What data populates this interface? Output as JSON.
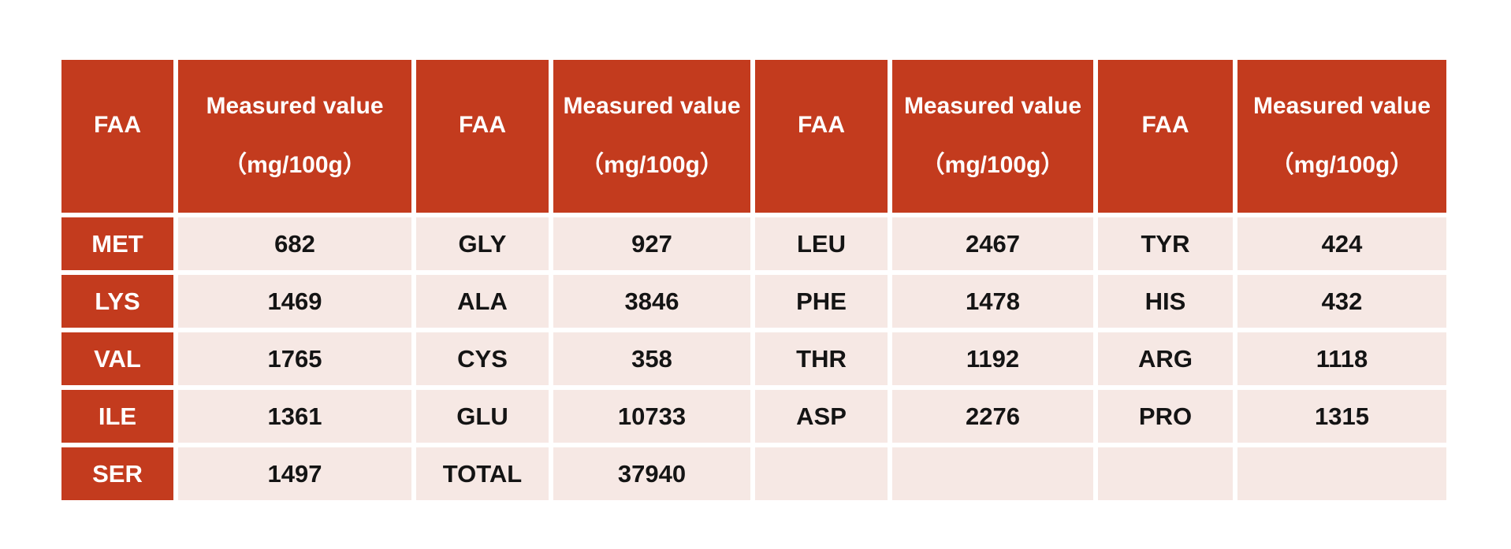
{
  "header": {
    "faa_label": "FAA",
    "value_label": "Measured value",
    "unit_label": "（mg/100g）"
  },
  "colors": {
    "header_bg": "#C33B1E",
    "body_bg": "#F6E8E4",
    "header_text": "#FFFFFF",
    "body_text": "#141414"
  },
  "chart_data": {
    "type": "table",
    "title": "",
    "unit": "mg/100g",
    "columns": [
      "FAA",
      "Measured value（mg/100g）",
      "FAA",
      "Measured value（mg/100g）",
      "FAA",
      "Measured value（mg/100g）",
      "FAA",
      "Measured value（mg/100g）"
    ],
    "rows": [
      [
        "MET",
        "682",
        "GLY",
        "927",
        "LEU",
        "2467",
        "TYR",
        "424"
      ],
      [
        "LYS",
        "1469",
        "ALA",
        "3846",
        "PHE",
        "1478",
        "HIS",
        "432"
      ],
      [
        "VAL",
        "1765",
        "CYS",
        "358",
        "THR",
        "1192",
        "ARG",
        "1118"
      ],
      [
        "ILE",
        "1361",
        "GLU",
        "10733",
        "ASP",
        "2276",
        "PRO",
        "1315"
      ],
      [
        "SER",
        "1497",
        "TOTAL",
        "37940",
        "",
        "",
        "",
        ""
      ]
    ],
    "measurements": [
      {
        "faa": "MET",
        "value": 682
      },
      {
        "faa": "LYS",
        "value": 1469
      },
      {
        "faa": "VAL",
        "value": 1765
      },
      {
        "faa": "ILE",
        "value": 1361
      },
      {
        "faa": "SER",
        "value": 1497
      },
      {
        "faa": "GLY",
        "value": 927
      },
      {
        "faa": "ALA",
        "value": 3846
      },
      {
        "faa": "CYS",
        "value": 358
      },
      {
        "faa": "GLU",
        "value": 10733
      },
      {
        "faa": "LEU",
        "value": 2467
      },
      {
        "faa": "PHE",
        "value": 1478
      },
      {
        "faa": "THR",
        "value": 1192
      },
      {
        "faa": "ASP",
        "value": 2276
      },
      {
        "faa": "TYR",
        "value": 424
      },
      {
        "faa": "HIS",
        "value": 432
      },
      {
        "faa": "ARG",
        "value": 1118
      },
      {
        "faa": "PRO",
        "value": 1315
      },
      {
        "faa": "TOTAL",
        "value": 37940
      }
    ]
  }
}
